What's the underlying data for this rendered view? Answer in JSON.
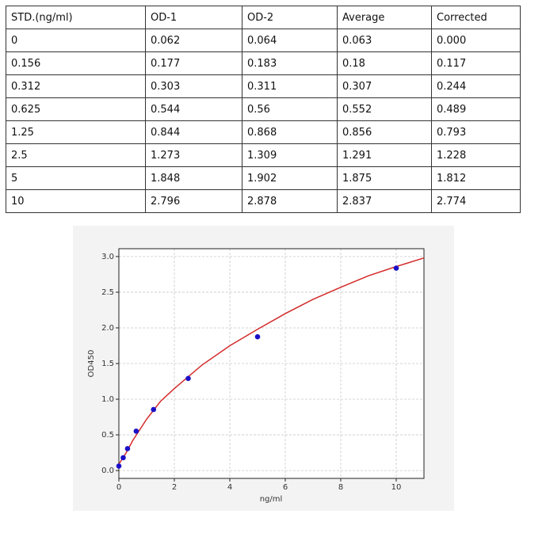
{
  "table": {
    "header": [
      "STD.(ng/ml)",
      "OD-1",
      "OD-2",
      "Average",
      "Corrected"
    ],
    "rows": [
      [
        "0",
        "0.062",
        "0.064",
        "0.063",
        "0.000"
      ],
      [
        "0.156",
        "0.177",
        "0.183",
        "0.18",
        "0.117"
      ],
      [
        "0.312",
        "0.303",
        "0.311",
        "0.307",
        "0.244"
      ],
      [
        "0.625",
        "0.544",
        "0.56",
        "0.552",
        "0.489"
      ],
      [
        "1.25",
        "0.844",
        "0.868",
        "0.856",
        "0.793"
      ],
      [
        "2.5",
        "1.273",
        "1.309",
        "1.291",
        "1.228"
      ],
      [
        "5",
        "1.848",
        "1.902",
        "1.875",
        "1.812"
      ],
      [
        "10",
        "2.796",
        "2.878",
        "2.837",
        "2.774"
      ]
    ]
  },
  "chart_data": {
    "type": "scatter",
    "x_label": "ng/ml",
    "y_label": "OD450",
    "xlim": [
      0,
      11
    ],
    "ylim": [
      -0.11,
      3.11
    ],
    "xticks": [
      0,
      2,
      4,
      6,
      8,
      10
    ],
    "yticks": [
      {
        "value": 0,
        "label": "0.0"
      },
      0.5,
      {
        "value": 1,
        "label": "1.0"
      },
      1.5,
      {
        "value": 2,
        "label": "2.0"
      },
      2.5,
      {
        "value": 3,
        "label": "3.0"
      }
    ],
    "grid": true,
    "series": [
      {
        "type": "line",
        "color": "#d42a2a",
        "x": [
          0,
          0.25,
          0.5,
          1,
          1.5,
          2,
          3,
          4,
          5,
          6,
          7,
          8,
          9,
          10,
          11
        ],
        "values": [
          0.09,
          0.24,
          0.42,
          0.72,
          0.97,
          1.15,
          1.48,
          1.75,
          1.98,
          2.2,
          2.4,
          2.57,
          2.73,
          2.86,
          2.98
        ]
      },
      {
        "type": "scatter",
        "color": "#1a10c8",
        "x": [
          0,
          0.156,
          0.312,
          0.625,
          1.25,
          2.5,
          5,
          10
        ],
        "values": [
          0.063,
          0.18,
          0.307,
          0.552,
          0.856,
          1.291,
          1.875,
          2.837
        ]
      }
    ]
  }
}
